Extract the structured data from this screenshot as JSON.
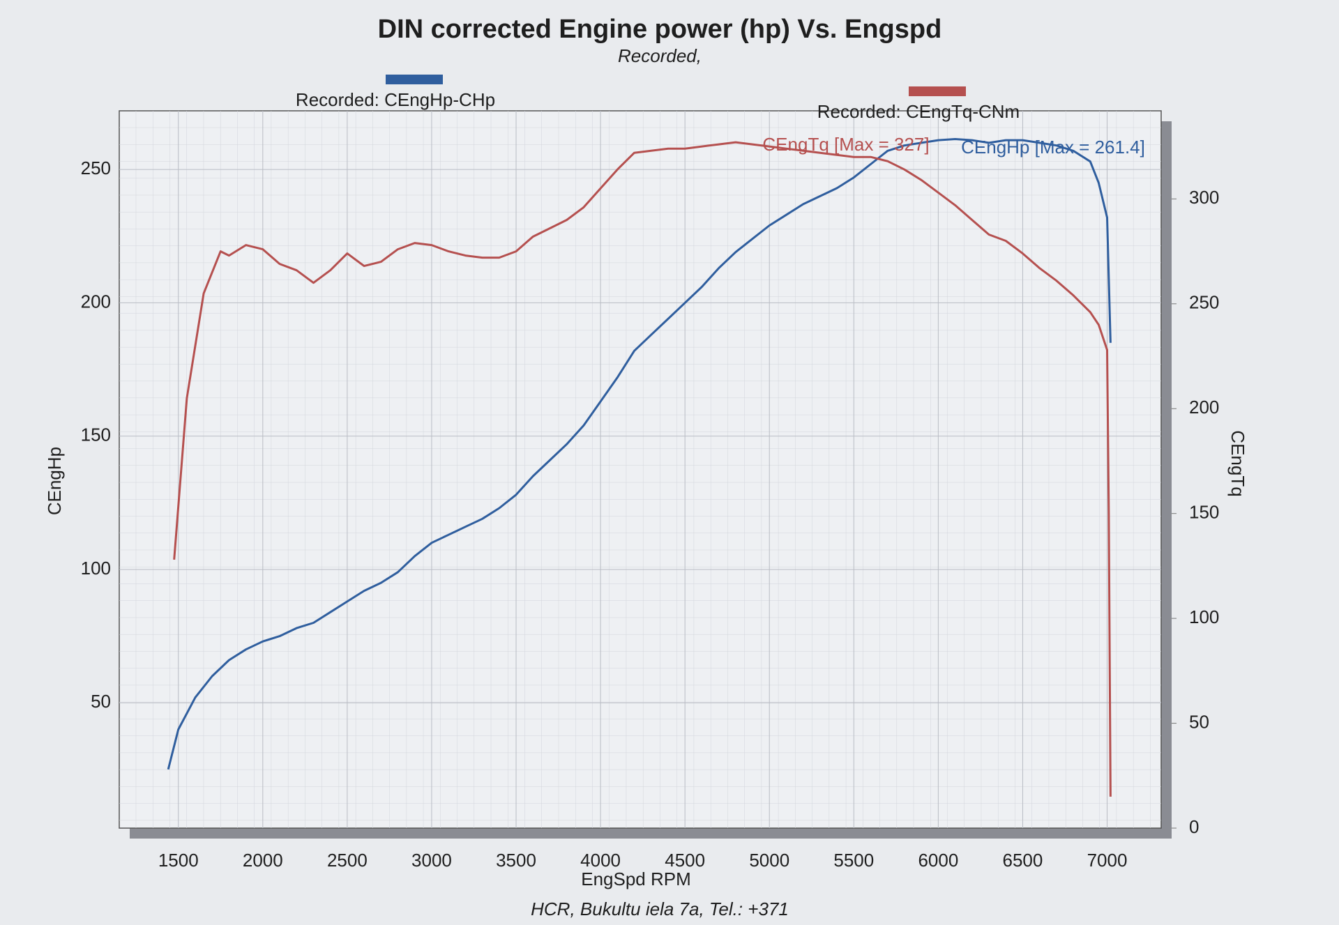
{
  "chart_data": {
    "type": "line",
    "title": "DIN corrected Engine power (hp) Vs. Engspd",
    "subtitle": "Recorded,",
    "xlabel": "EngSpd RPM",
    "ylabel": "CEngHp",
    "y2label": "CEngTq",
    "footer": "HCR, Bukultu iela 7a, Tel.: +371",
    "annotations": [
      "CEngTq [Max = 327]",
      "CEngHp [Max = 261.4]"
    ],
    "xlim": [
      1150,
      7320
    ],
    "xticks": [
      1500,
      2000,
      2500,
      3000,
      3500,
      4000,
      4500,
      5000,
      5500,
      6000,
      6500,
      7000
    ],
    "ylim": [
      3,
      272
    ],
    "yticks": [
      50,
      100,
      150,
      200,
      250
    ],
    "y2lim": [
      0,
      342
    ],
    "y2ticks": [
      0,
      50,
      100,
      150,
      200,
      250,
      300
    ],
    "grid": true,
    "series": [
      {
        "name": "Recorded: CEngHp-CHp",
        "color": "#2f5e9e",
        "x": [
          1440,
          1500,
          1600,
          1700,
          1800,
          1900,
          2000,
          2100,
          2200,
          2300,
          2400,
          2500,
          2600,
          2700,
          2800,
          2900,
          3000,
          3100,
          3200,
          3300,
          3400,
          3500,
          3600,
          3700,
          3800,
          3900,
          4000,
          4100,
          4200,
          4300,
          4400,
          4500,
          4600,
          4700,
          4800,
          4900,
          5000,
          5100,
          5200,
          5300,
          5400,
          5500,
          5600,
          5700,
          5800,
          5900,
          6000,
          6100,
          6200,
          6300,
          6400,
          6500,
          6600,
          6700,
          6800,
          6900,
          6950,
          7000,
          7020
        ],
        "values": [
          25,
          40,
          52,
          60,
          66,
          70,
          73,
          75,
          78,
          80,
          84,
          88,
          92,
          95,
          99,
          105,
          110,
          113,
          116,
          119,
          123,
          128,
          135,
          141,
          147,
          154,
          163,
          172,
          182,
          188,
          194,
          200,
          206,
          213,
          219,
          224,
          229,
          233,
          237,
          240,
          243,
          247,
          252,
          257,
          259,
          260,
          261,
          261.4,
          261,
          260,
          261,
          261,
          260,
          259,
          257,
          253,
          245,
          232,
          185
        ]
      },
      {
        "name": "Recorded: CEngTq-CNm",
        "color": "#b5504f",
        "axis": "y2",
        "x": [
          1475,
          1550,
          1600,
          1650,
          1700,
          1750,
          1800,
          1900,
          2000,
          2100,
          2200,
          2300,
          2400,
          2500,
          2600,
          2700,
          2800,
          2900,
          3000,
          3100,
          3200,
          3300,
          3400,
          3500,
          3600,
          3700,
          3800,
          3900,
          4000,
          4100,
          4200,
          4300,
          4400,
          4500,
          4600,
          4700,
          4800,
          4900,
          5000,
          5100,
          5200,
          5300,
          5400,
          5500,
          5600,
          5700,
          5800,
          5900,
          6000,
          6100,
          6200,
          6300,
          6400,
          6500,
          6600,
          6700,
          6800,
          6900,
          6950,
          7000,
          7010,
          7020
        ],
        "values": [
          128,
          205,
          230,
          255,
          265,
          275,
          273,
          278,
          276,
          269,
          266,
          260,
          266,
          274,
          268,
          270,
          276,
          279,
          278,
          275,
          273,
          272,
          272,
          275,
          282,
          286,
          290,
          296,
          305,
          314,
          322,
          323,
          324,
          324,
          325,
          326,
          327,
          326,
          325,
          324,
          323,
          322,
          321,
          320,
          320,
          318,
          314,
          309,
          303,
          297,
          290,
          283,
          280,
          274,
          267,
          261,
          254,
          246,
          240,
          228,
          150,
          15
        ]
      }
    ]
  }
}
